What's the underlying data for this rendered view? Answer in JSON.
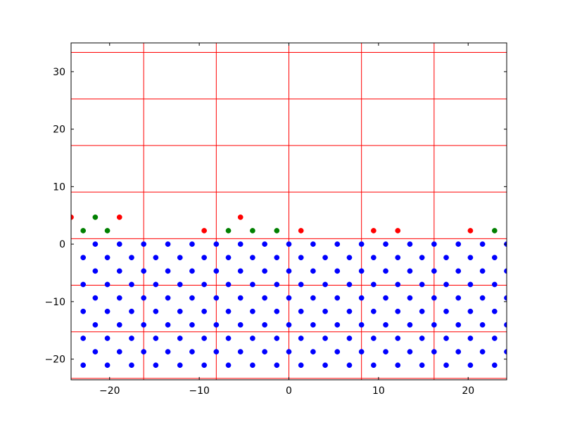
{
  "chart_data": {
    "type": "scatter",
    "xlim": [
      -24.3,
      24.3
    ],
    "ylim": [
      -23.6,
      35
    ],
    "xticks": [
      {
        "value": -20,
        "label": "−20"
      },
      {
        "value": -10,
        "label": "−10"
      },
      0,
      10,
      20
    ],
    "yticks": [
      {
        "value": -20,
        "label": "−20"
      },
      {
        "value": -10,
        "label": "−10"
      },
      0,
      10,
      20,
      30
    ],
    "lines": {
      "color": "#ff0000",
      "vlines": [
        -24.3,
        -16.2,
        -8.1,
        0,
        8.1,
        16.2,
        24.3
      ],
      "hlines": [
        -23.35,
        -15.25,
        -7.15,
        0.95,
        9.05,
        17.15,
        25.25,
        33.35
      ]
    },
    "series": [
      {
        "color": "#0000ff",
        "x": [
          -21.6,
          -18.9,
          -16.2,
          -13.5,
          -10.8,
          -8.1,
          -5.4,
          -2.7,
          0,
          2.7,
          5.4,
          8.1,
          10.8,
          13.5,
          16.2,
          18.9,
          21.6,
          24.3
        ],
        "y": [
          0,
          0,
          0,
          0,
          0,
          0,
          0,
          0,
          0,
          0,
          0,
          0,
          0,
          0,
          0,
          0,
          0,
          0
        ]
      },
      {
        "color": "#0000ff",
        "x": [
          -22.95,
          -20.25,
          -17.55,
          -14.85,
          -12.15,
          -9.45,
          -6.75,
          -4.05,
          -1.35,
          1.35,
          4.05,
          6.75,
          9.45,
          12.15,
          14.85,
          17.55,
          20.25,
          22.95
        ],
        "y": [
          -2.34,
          -2.34,
          -2.34,
          -2.34,
          -2.34,
          -2.34,
          -2.34,
          -2.34,
          -2.34,
          -2.34,
          -2.34,
          -2.34,
          -2.34,
          -2.34,
          -2.34,
          -2.34,
          -2.34,
          -2.34
        ]
      },
      {
        "color": "#0000ff",
        "x": [
          -21.6,
          -18.9,
          -16.2,
          -13.5,
          -10.8,
          -8.1,
          -5.4,
          -2.7,
          0,
          2.7,
          5.4,
          8.1,
          10.8,
          13.5,
          16.2,
          18.9,
          21.6,
          24.3
        ],
        "y": [
          -4.68,
          -4.68,
          -4.68,
          -4.68,
          -4.68,
          -4.68,
          -4.68,
          -4.68,
          -4.68,
          -4.68,
          -4.68,
          -4.68,
          -4.68,
          -4.68,
          -4.68,
          -4.68,
          -4.68,
          -4.68
        ]
      },
      {
        "color": "#0000ff",
        "x": [
          -22.95,
          -20.25,
          -17.55,
          -14.85,
          -12.15,
          -9.45,
          -6.75,
          -4.05,
          -1.35,
          1.35,
          4.05,
          6.75,
          9.45,
          12.15,
          14.85,
          17.55,
          20.25,
          22.95
        ],
        "y": [
          -7.02,
          -7.02,
          -7.02,
          -7.02,
          -7.02,
          -7.02,
          -7.02,
          -7.02,
          -7.02,
          -7.02,
          -7.02,
          -7.02,
          -7.02,
          -7.02,
          -7.02,
          -7.02,
          -7.02,
          -7.02
        ]
      },
      {
        "color": "#0000ff",
        "x": [
          -21.6,
          -18.9,
          -16.2,
          -13.5,
          -10.8,
          -8.1,
          -5.4,
          -2.7,
          0,
          2.7,
          5.4,
          8.1,
          10.8,
          13.5,
          16.2,
          18.9,
          21.6,
          24.3
        ],
        "y": [
          -9.36,
          -9.36,
          -9.36,
          -9.36,
          -9.36,
          -9.36,
          -9.36,
          -9.36,
          -9.36,
          -9.36,
          -9.36,
          -9.36,
          -9.36,
          -9.36,
          -9.36,
          -9.36,
          -9.36,
          -9.36
        ]
      },
      {
        "color": "#0000ff",
        "x": [
          -22.95,
          -20.25,
          -17.55,
          -14.85,
          -12.15,
          -9.45,
          -6.75,
          -4.05,
          -1.35,
          1.35,
          4.05,
          6.75,
          9.45,
          12.15,
          14.85,
          17.55,
          20.25,
          22.95
        ],
        "y": [
          -11.7,
          -11.7,
          -11.7,
          -11.7,
          -11.7,
          -11.7,
          -11.7,
          -11.7,
          -11.7,
          -11.7,
          -11.7,
          -11.7,
          -11.7,
          -11.7,
          -11.7,
          -11.7,
          -11.7,
          -11.7
        ]
      },
      {
        "color": "#0000ff",
        "x": [
          -21.6,
          -18.9,
          -16.2,
          -13.5,
          -10.8,
          -8.1,
          -5.4,
          -2.7,
          0,
          2.7,
          5.4,
          8.1,
          10.8,
          13.5,
          16.2,
          18.9,
          21.6,
          24.3
        ],
        "y": [
          -14.04,
          -14.04,
          -14.04,
          -14.04,
          -14.04,
          -14.04,
          -14.04,
          -14.04,
          -14.04,
          -14.04,
          -14.04,
          -14.04,
          -14.04,
          -14.04,
          -14.04,
          -14.04,
          -14.04,
          -14.04
        ]
      },
      {
        "color": "#0000ff",
        "x": [
          -22.95,
          -20.25,
          -17.55,
          -14.85,
          -12.15,
          -9.45,
          -6.75,
          -4.05,
          -1.35,
          1.35,
          4.05,
          6.75,
          9.45,
          12.15,
          14.85,
          17.55,
          20.25,
          22.95
        ],
        "y": [
          -16.38,
          -16.38,
          -16.38,
          -16.38,
          -16.38,
          -16.38,
          -16.38,
          -16.38,
          -16.38,
          -16.38,
          -16.38,
          -16.38,
          -16.38,
          -16.38,
          -16.38,
          -16.38,
          -16.38,
          -16.38
        ]
      },
      {
        "color": "#0000ff",
        "x": [
          -21.6,
          -18.9,
          -16.2,
          -13.5,
          -10.8,
          -8.1,
          -5.4,
          -2.7,
          0,
          2.7,
          5.4,
          8.1,
          10.8,
          13.5,
          16.2,
          18.9,
          21.6,
          24.3
        ],
        "y": [
          -18.72,
          -18.72,
          -18.72,
          -18.72,
          -18.72,
          -18.72,
          -18.72,
          -18.72,
          -18.72,
          -18.72,
          -18.72,
          -18.72,
          -18.72,
          -18.72,
          -18.72,
          -18.72,
          -18.72,
          -18.72
        ]
      },
      {
        "color": "#0000ff",
        "x": [
          -22.95,
          -20.25,
          -17.55,
          -14.85,
          -12.15,
          -9.45,
          -6.75,
          -4.05,
          -1.35,
          1.35,
          4.05,
          6.75,
          9.45,
          12.15,
          14.85,
          17.55,
          20.25,
          22.95
        ],
        "y": [
          -21.06,
          -21.06,
          -21.06,
          -21.06,
          -21.06,
          -21.06,
          -21.06,
          -21.06,
          -21.06,
          -21.06,
          -21.06,
          -21.06,
          -21.06,
          -21.06,
          -21.06,
          -21.06,
          -21.06,
          -21.06
        ]
      },
      {
        "color": "#ff0000",
        "x": [
          -24.3,
          -18.9,
          -9.45,
          -5.4,
          1.35,
          9.45,
          12.15,
          20.25
        ],
        "y": [
          4.68,
          4.68,
          2.34,
          4.68,
          2.34,
          2.34,
          2.34,
          2.34
        ]
      },
      {
        "color": "#008000",
        "x": [
          -22.95,
          -21.6,
          -20.25,
          -6.75,
          -4.05,
          -1.35,
          22.95
        ],
        "y": [
          2.34,
          4.68,
          2.34,
          2.34,
          2.34,
          2.34,
          2.34
        ]
      }
    ]
  }
}
